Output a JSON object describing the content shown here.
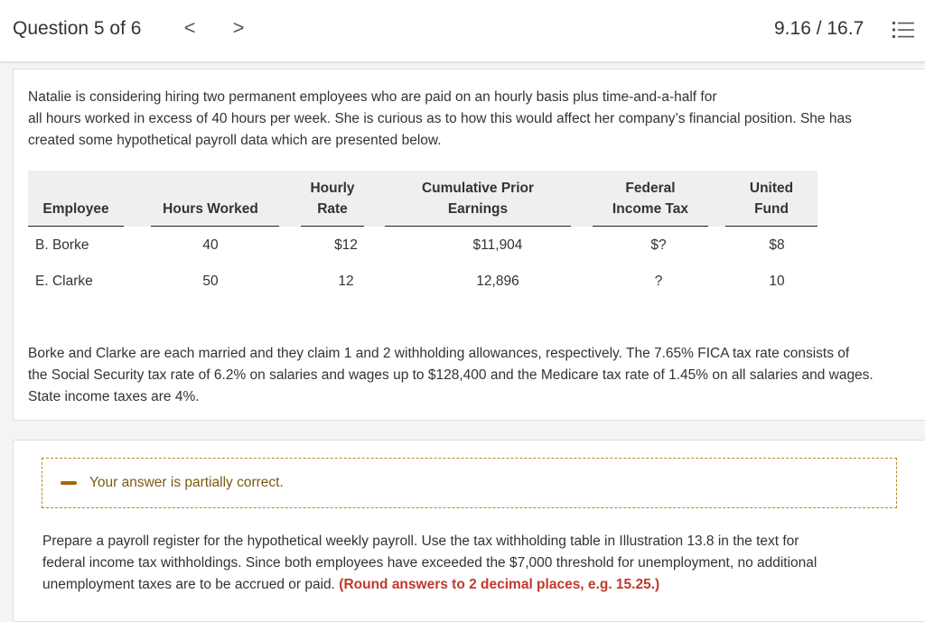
{
  "header": {
    "question_label": "Question 5 of 6",
    "prev_glyph": "<",
    "next_glyph": ">",
    "score": "9.16 / 16.7",
    "menu_icon": "list-icon"
  },
  "problem": {
    "intro_lines": [
      "Natalie is considering hiring two permanent employees who are paid on an hourly basis plus time-and-a-half for",
      "all hours worked in excess of 40 hours per week. She is curious as to how this would affect her company’s financial position. She has",
      "created some hypothetical payroll data which are presented below."
    ],
    "table": {
      "headers": [
        [
          "Employee"
        ],
        [
          "Hours Worked"
        ],
        [
          "Hourly",
          "Rate"
        ],
        [
          "Cumulative Prior",
          "Earnings"
        ],
        [
          "Federal",
          "Income Tax"
        ],
        [
          "United",
          "Fund"
        ]
      ],
      "rows": [
        [
          "B. Borke",
          "40",
          "$12",
          "$11,904",
          "$?",
          "$8"
        ],
        [
          "E. Clarke",
          "50",
          "12",
          "12,896",
          "?",
          "10"
        ]
      ]
    },
    "closing_lines": [
      "Borke and Clarke are each married and they claim 1 and 2 withholding allowances, respectively. The 7.65% FICA tax rate consists of",
      "the Social Security tax rate of 6.2% on salaries and wages up to $128,400 and the Medicare tax rate of 1.45% on all salaries and wages.",
      "State income taxes are 4%."
    ]
  },
  "answer_section": {
    "feedback_text": "Your answer is partially correct.",
    "instruction_lines": [
      "Prepare a payroll register for the hypothetical weekly payroll. Use the tax withholding table in Illustration 13.8 in the text for",
      "federal income tax withholdings. Since both employees have exceeded the $7,000 threshold for unemployment, no additional",
      "unemployment taxes are to be accrued or paid."
    ],
    "rounding_hint": "(Round answers to 2 decimal places, e.g. 15.25.)"
  },
  "colors": {
    "hint_red": "#c0392b",
    "feedback_border": "#b9882c",
    "feedback_icon": "#a06b00"
  }
}
